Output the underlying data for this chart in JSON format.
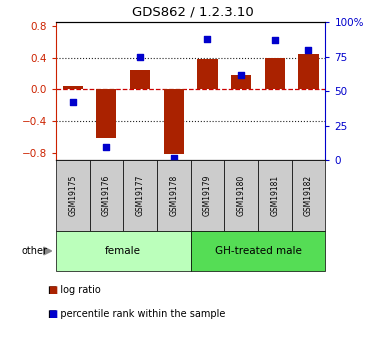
{
  "title": "GDS862 / 1.2.3.10",
  "samples": [
    "GSM19175",
    "GSM19176",
    "GSM19177",
    "GSM19178",
    "GSM19179",
    "GSM19180",
    "GSM19181",
    "GSM19182"
  ],
  "log_ratio": [
    0.05,
    -0.62,
    0.25,
    -0.82,
    0.38,
    0.18,
    0.4,
    0.45
  ],
  "percentile_rank": [
    42,
    10,
    75,
    2,
    88,
    62,
    87,
    80
  ],
  "groups": [
    {
      "label": "female",
      "start": 0,
      "end": 4,
      "color": "#bbffbb"
    },
    {
      "label": "GH-treated male",
      "start": 4,
      "end": 8,
      "color": "#55dd55"
    }
  ],
  "other_label": "other",
  "ylim_left": [
    -0.9,
    0.85
  ],
  "ylim_right": [
    0,
    100
  ],
  "yticks_left": [
    -0.8,
    -0.4,
    0.0,
    0.4,
    0.8
  ],
  "yticks_right": [
    0,
    25,
    50,
    75,
    100
  ],
  "ytick_labels_right": [
    "0",
    "25",
    "50",
    "75",
    "100%"
  ],
  "bar_color": "#aa2200",
  "dot_color": "#0000cc",
  "zero_line_color": "#cc0000",
  "dotted_line_color": "#222222",
  "left_tick_color": "#cc2200",
  "right_tick_color": "#0000cc",
  "legend_log": "log ratio",
  "legend_pct": "percentile rank within the sample",
  "label_bg_color": "#cccccc",
  "bar_width": 0.6
}
